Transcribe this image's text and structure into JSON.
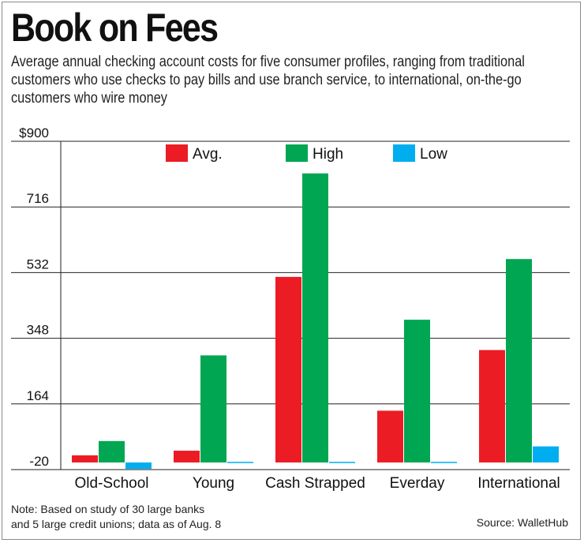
{
  "title": "Book on Fees",
  "subtitle": "Average annual checking account costs for five consumer profiles, ranging from traditional customers who use checks to pay bills and use branch service, to international, on-the-go customers who wire money",
  "note_line1": "Note: Based on study of 30 large banks",
  "note_line2": "and 5 large credit unions; data as of Aug. 8",
  "source": "Source: WalletHub",
  "chart_data": {
    "type": "bar",
    "categories": [
      "Old-School",
      "Young",
      "Cash Strapped",
      "Everday",
      "International"
    ],
    "series": [
      {
        "name": "Avg.",
        "color": "#ec1c24",
        "values": [
          20,
          33,
          520,
          145,
          315
        ]
      },
      {
        "name": "High",
        "color": "#00a651",
        "values": [
          60,
          300,
          810,
          400,
          570
        ]
      },
      {
        "name": "Low",
        "color": "#00aeef",
        "values": [
          -18,
          0,
          0,
          0,
          45
        ]
      }
    ],
    "ylim": [
      -20,
      900
    ],
    "yticks": [
      -20,
      164,
      348,
      532,
      716,
      900
    ],
    "ytick_labels": [
      "-20",
      "164",
      "348",
      "532",
      "716",
      "$900"
    ],
    "grid": true,
    "legend_position": "top"
  }
}
